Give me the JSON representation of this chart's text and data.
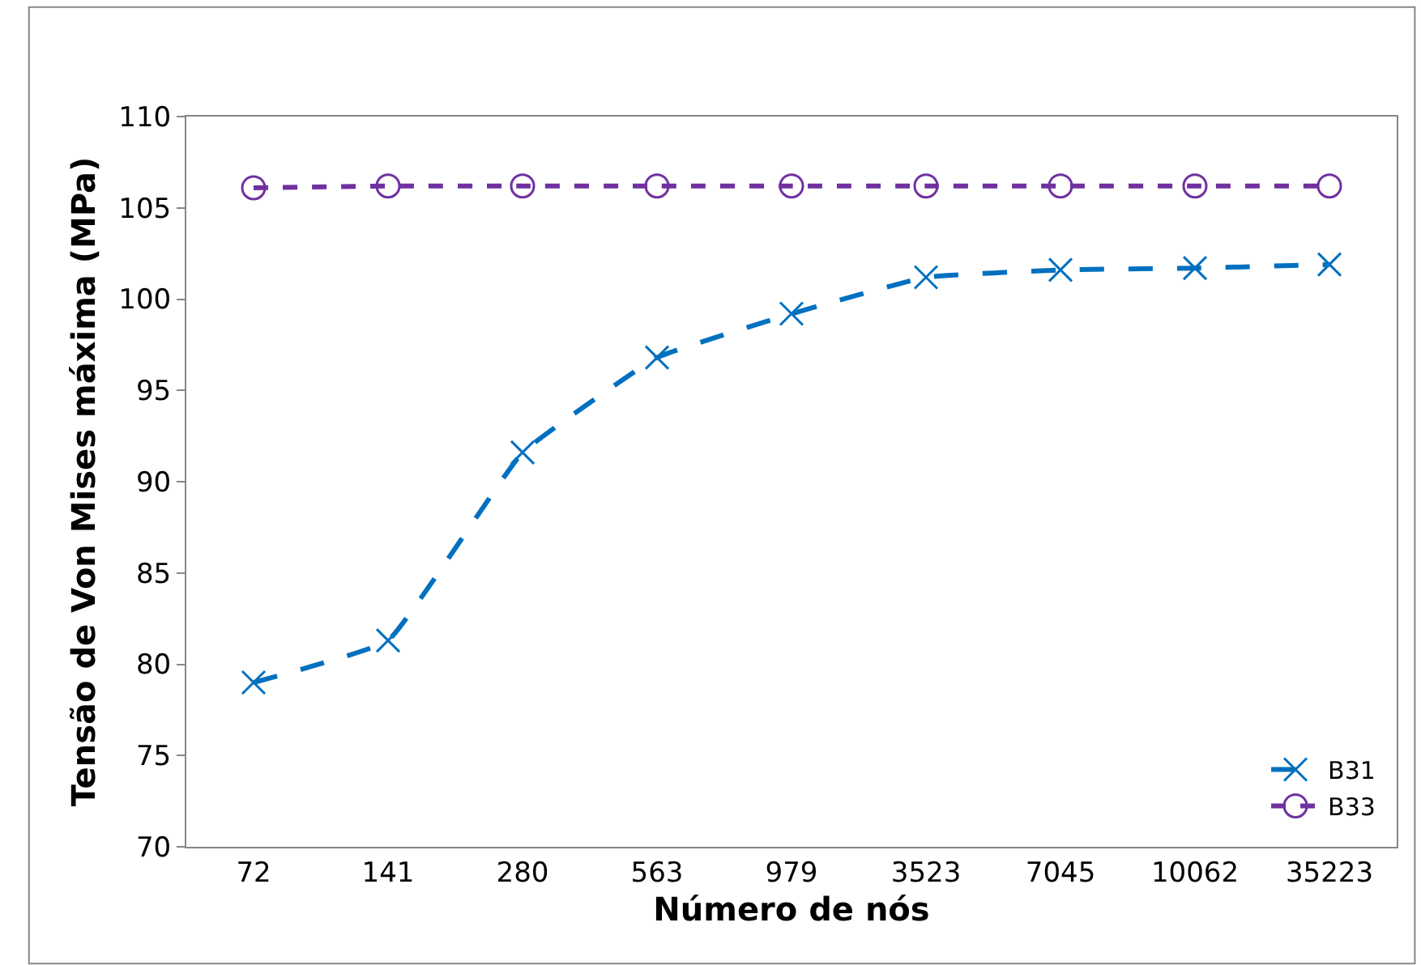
{
  "chart_data": {
    "type": "line",
    "xlabel": "Número de nós",
    "ylabel": "Tensão de Von Mises máxima (MPa)",
    "categories": [
      "72",
      "141",
      "280",
      "563",
      "979",
      "3523",
      "7045",
      "10062",
      "35223"
    ],
    "series": [
      {
        "name": "B31",
        "color": "#0070c0",
        "marker": "cross",
        "line_style": "dashed",
        "values": [
          79.0,
          81.3,
          91.6,
          96.8,
          99.2,
          101.2,
          101.6,
          101.7,
          101.9
        ]
      },
      {
        "name": "B33",
        "color": "#7030a0",
        "marker": "circle",
        "line_style": "dotted",
        "values": [
          106.1,
          106.2,
          106.2,
          106.2,
          106.2,
          106.2,
          106.2,
          106.2,
          106.2
        ]
      }
    ],
    "ylim": [
      70,
      110
    ],
    "yticks": [
      70,
      75,
      80,
      85,
      90,
      95,
      100,
      105,
      110
    ],
    "legend": "bottom right"
  }
}
